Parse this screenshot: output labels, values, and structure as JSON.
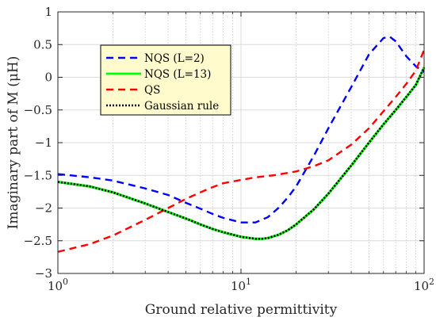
{
  "chart_data": {
    "type": "line",
    "xlabel": "Ground relative permittivity",
    "ylabel": "Imaginary part of M (μH)",
    "xscale": "log",
    "xlim": [
      1,
      100
    ],
    "ylim": [
      -3,
      1
    ],
    "xticks": [
      {
        "value": 1,
        "base": "10",
        "exp": "0"
      },
      {
        "value": 10,
        "base": "10",
        "exp": "1"
      },
      {
        "value": 100,
        "base": "10",
        "exp": "2"
      }
    ],
    "yticks": [
      {
        "value": 1,
        "label": "1"
      },
      {
        "value": 0.5,
        "label": "0.5"
      },
      {
        "value": 0,
        "label": "0"
      },
      {
        "value": -0.5,
        "label": "−0.5"
      },
      {
        "value": -1,
        "label": "−1"
      },
      {
        "value": -1.5,
        "label": "−1.5"
      },
      {
        "value": -2,
        "label": "−2"
      },
      {
        "value": -2.5,
        "label": "−2.5"
      },
      {
        "value": -3,
        "label": "−3"
      }
    ],
    "grid": true,
    "minor_grid": true,
    "legend_position": "top-left",
    "series": [
      {
        "name": "NQS (L=2)",
        "color": "#0000ff",
        "style": "dashed",
        "x": [
          1,
          1.5,
          2,
          3,
          4,
          5,
          6,
          7,
          8,
          10,
          12,
          14,
          16,
          18,
          20,
          25,
          30,
          40,
          50,
          60,
          65,
          70,
          80,
          90,
          100
        ],
        "y": [
          -1.48,
          -1.53,
          -1.58,
          -1.7,
          -1.8,
          -1.92,
          -2.01,
          -2.09,
          -2.15,
          -2.22,
          -2.22,
          -2.14,
          -2.0,
          -1.84,
          -1.67,
          -1.2,
          -0.78,
          -0.15,
          0.35,
          0.6,
          0.62,
          0.55,
          0.32,
          0.17,
          0.08
        ]
      },
      {
        "name": "NQS (L=13)",
        "color": "#00ff00",
        "style": "solid",
        "x": [
          1,
          1.5,
          2,
          3,
          4,
          5,
          6,
          7,
          8,
          10,
          12,
          13,
          14,
          16,
          18,
          20,
          25,
          30,
          40,
          50,
          60,
          70,
          80,
          90,
          100
        ],
        "y": [
          -1.6,
          -1.67,
          -1.76,
          -1.93,
          -2.06,
          -2.16,
          -2.25,
          -2.32,
          -2.37,
          -2.44,
          -2.47,
          -2.47,
          -2.46,
          -2.41,
          -2.34,
          -2.25,
          -2.02,
          -1.78,
          -1.35,
          -1.0,
          -0.72,
          -0.5,
          -0.3,
          -0.12,
          0.15
        ]
      },
      {
        "name": "QS",
        "color": "#ff0000",
        "style": "dashed",
        "x": [
          1,
          1.5,
          2,
          3,
          4,
          5,
          6,
          7,
          8,
          10,
          12,
          15,
          20,
          25,
          30,
          40,
          50,
          60,
          70,
          80,
          90,
          100
        ],
        "y": [
          -2.67,
          -2.55,
          -2.42,
          -2.18,
          -2.0,
          -1.86,
          -1.76,
          -1.68,
          -1.62,
          -1.57,
          -1.53,
          -1.5,
          -1.44,
          -1.36,
          -1.27,
          -1.03,
          -0.78,
          -0.52,
          -0.3,
          -0.1,
          0.1,
          0.42
        ]
      },
      {
        "name": "Gaussian rule",
        "color": "#000000",
        "style": "dotted",
        "x": [
          1,
          1.5,
          2,
          3,
          4,
          5,
          6,
          7,
          8,
          10,
          12,
          13,
          14,
          16,
          18,
          20,
          25,
          30,
          40,
          50,
          60,
          70,
          80,
          90,
          100
        ],
        "y": [
          -1.6,
          -1.67,
          -1.76,
          -1.93,
          -2.06,
          -2.16,
          -2.25,
          -2.32,
          -2.37,
          -2.44,
          -2.47,
          -2.47,
          -2.46,
          -2.41,
          -2.34,
          -2.25,
          -2.02,
          -1.78,
          -1.35,
          -1.0,
          -0.72,
          -0.5,
          -0.3,
          -0.12,
          0.15
        ]
      }
    ]
  }
}
